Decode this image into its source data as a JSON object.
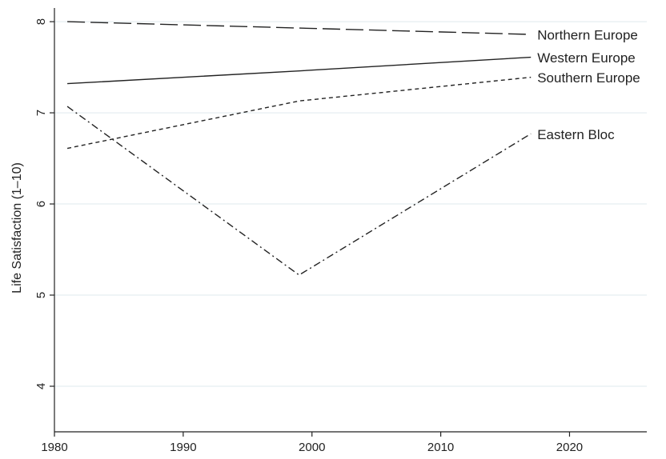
{
  "chart_data": {
    "type": "line",
    "title": "",
    "xlabel": "",
    "ylabel": "Life Satisfaction (1–10)",
    "x": [
      1981,
      1999,
      2017
    ],
    "xlim": [
      1980,
      2026
    ],
    "ylim": [
      3.5,
      8.15
    ],
    "xticks": [
      1980,
      1990,
      2000,
      2010,
      2020
    ],
    "yticks": [
      4,
      5,
      6,
      7,
      8
    ],
    "grid": "horizontal",
    "legend": "none; series labeled at line ends",
    "series": [
      {
        "name": "Northern Europe",
        "values": [
          8.0,
          7.93,
          7.86
        ],
        "dash": "long-dash"
      },
      {
        "name": "Western Europe",
        "values": [
          7.32,
          7.46,
          7.61
        ],
        "dash": "solid"
      },
      {
        "name": "Southern Europe",
        "values": [
          6.61,
          7.13,
          7.39
        ],
        "dash": "short-dash"
      },
      {
        "name": "Eastern Bloc",
        "values": [
          7.07,
          5.22,
          6.77
        ],
        "dash": "dash-dot"
      }
    ]
  }
}
